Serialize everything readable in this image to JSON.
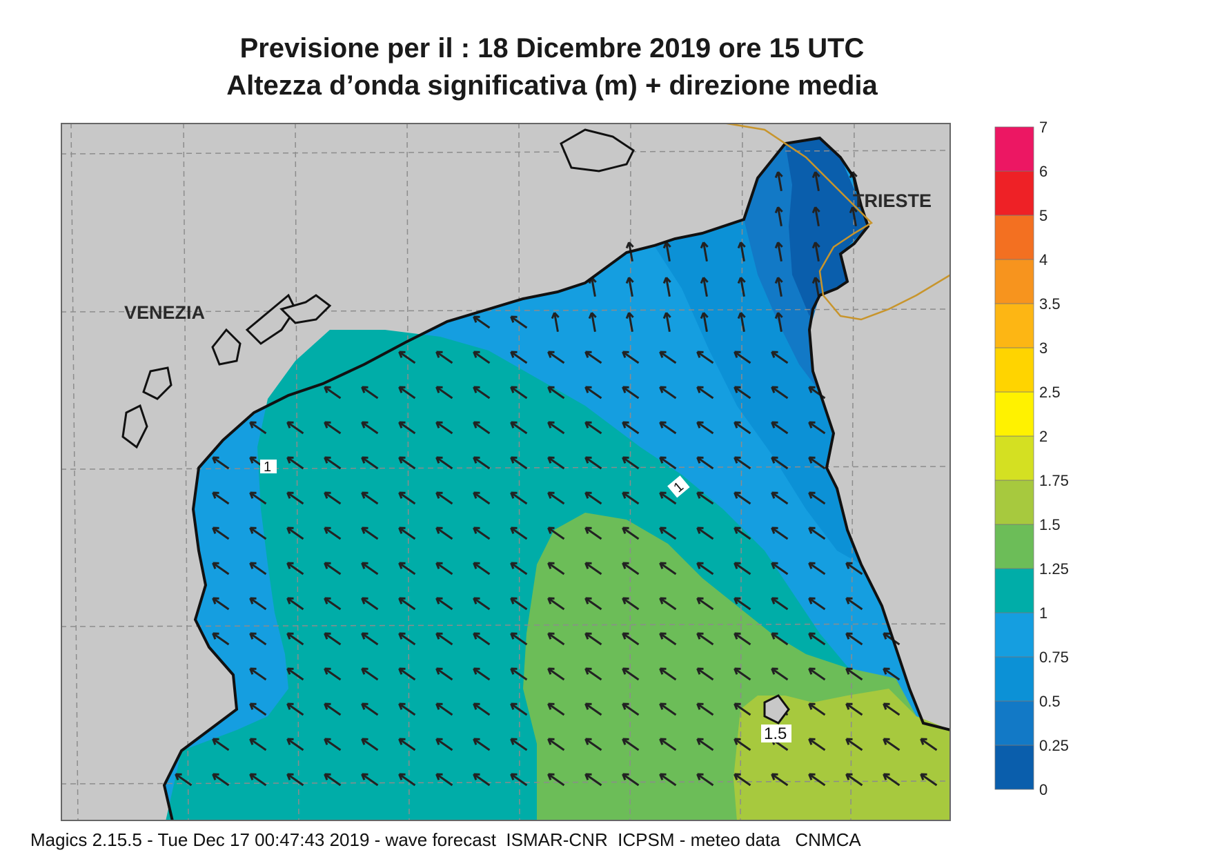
{
  "title": {
    "line1": "Previsione per il  :  18 Dicembre  2019   ore 15 UTC",
    "line2": "Altezza d’onda significativa (m) + direzione media"
  },
  "map": {
    "place_labels": {
      "venezia": "VENEZIA",
      "trieste": "TRIESTE"
    },
    "contour_labels": {
      "left": "1",
      "middle": "1",
      "lower": "1.5"
    },
    "colors": {
      "land": "#c8c8c8",
      "coast": "#111111",
      "border": "#c8952c",
      "grid": "#8c8c8c",
      "arrow": "#222222"
    }
  },
  "legend": {
    "levels": [
      "0",
      "0.25",
      "0.5",
      "0.75",
      "1",
      "1.25",
      "1.5",
      "1.75",
      "2",
      "2.5",
      "3",
      "3.5",
      "4",
      "5",
      "6",
      "7"
    ],
    "colors": [
      "#0a5eac",
      "#1279c6",
      "#0c91d6",
      "#159ee0",
      "#00ada8",
      "#6cbd58",
      "#a7c93e",
      "#d4e022",
      "#fff200",
      "#ffd400",
      "#fdb614",
      "#f7941e",
      "#f37021",
      "#ee2126",
      "#ec1763"
    ]
  },
  "footer": "Magics 2.15.5 - Tue Dec 17 00:47:43 2019 - wave forecast  ISMAR-CNR  ICPSM - meteo data   CNMCA"
}
